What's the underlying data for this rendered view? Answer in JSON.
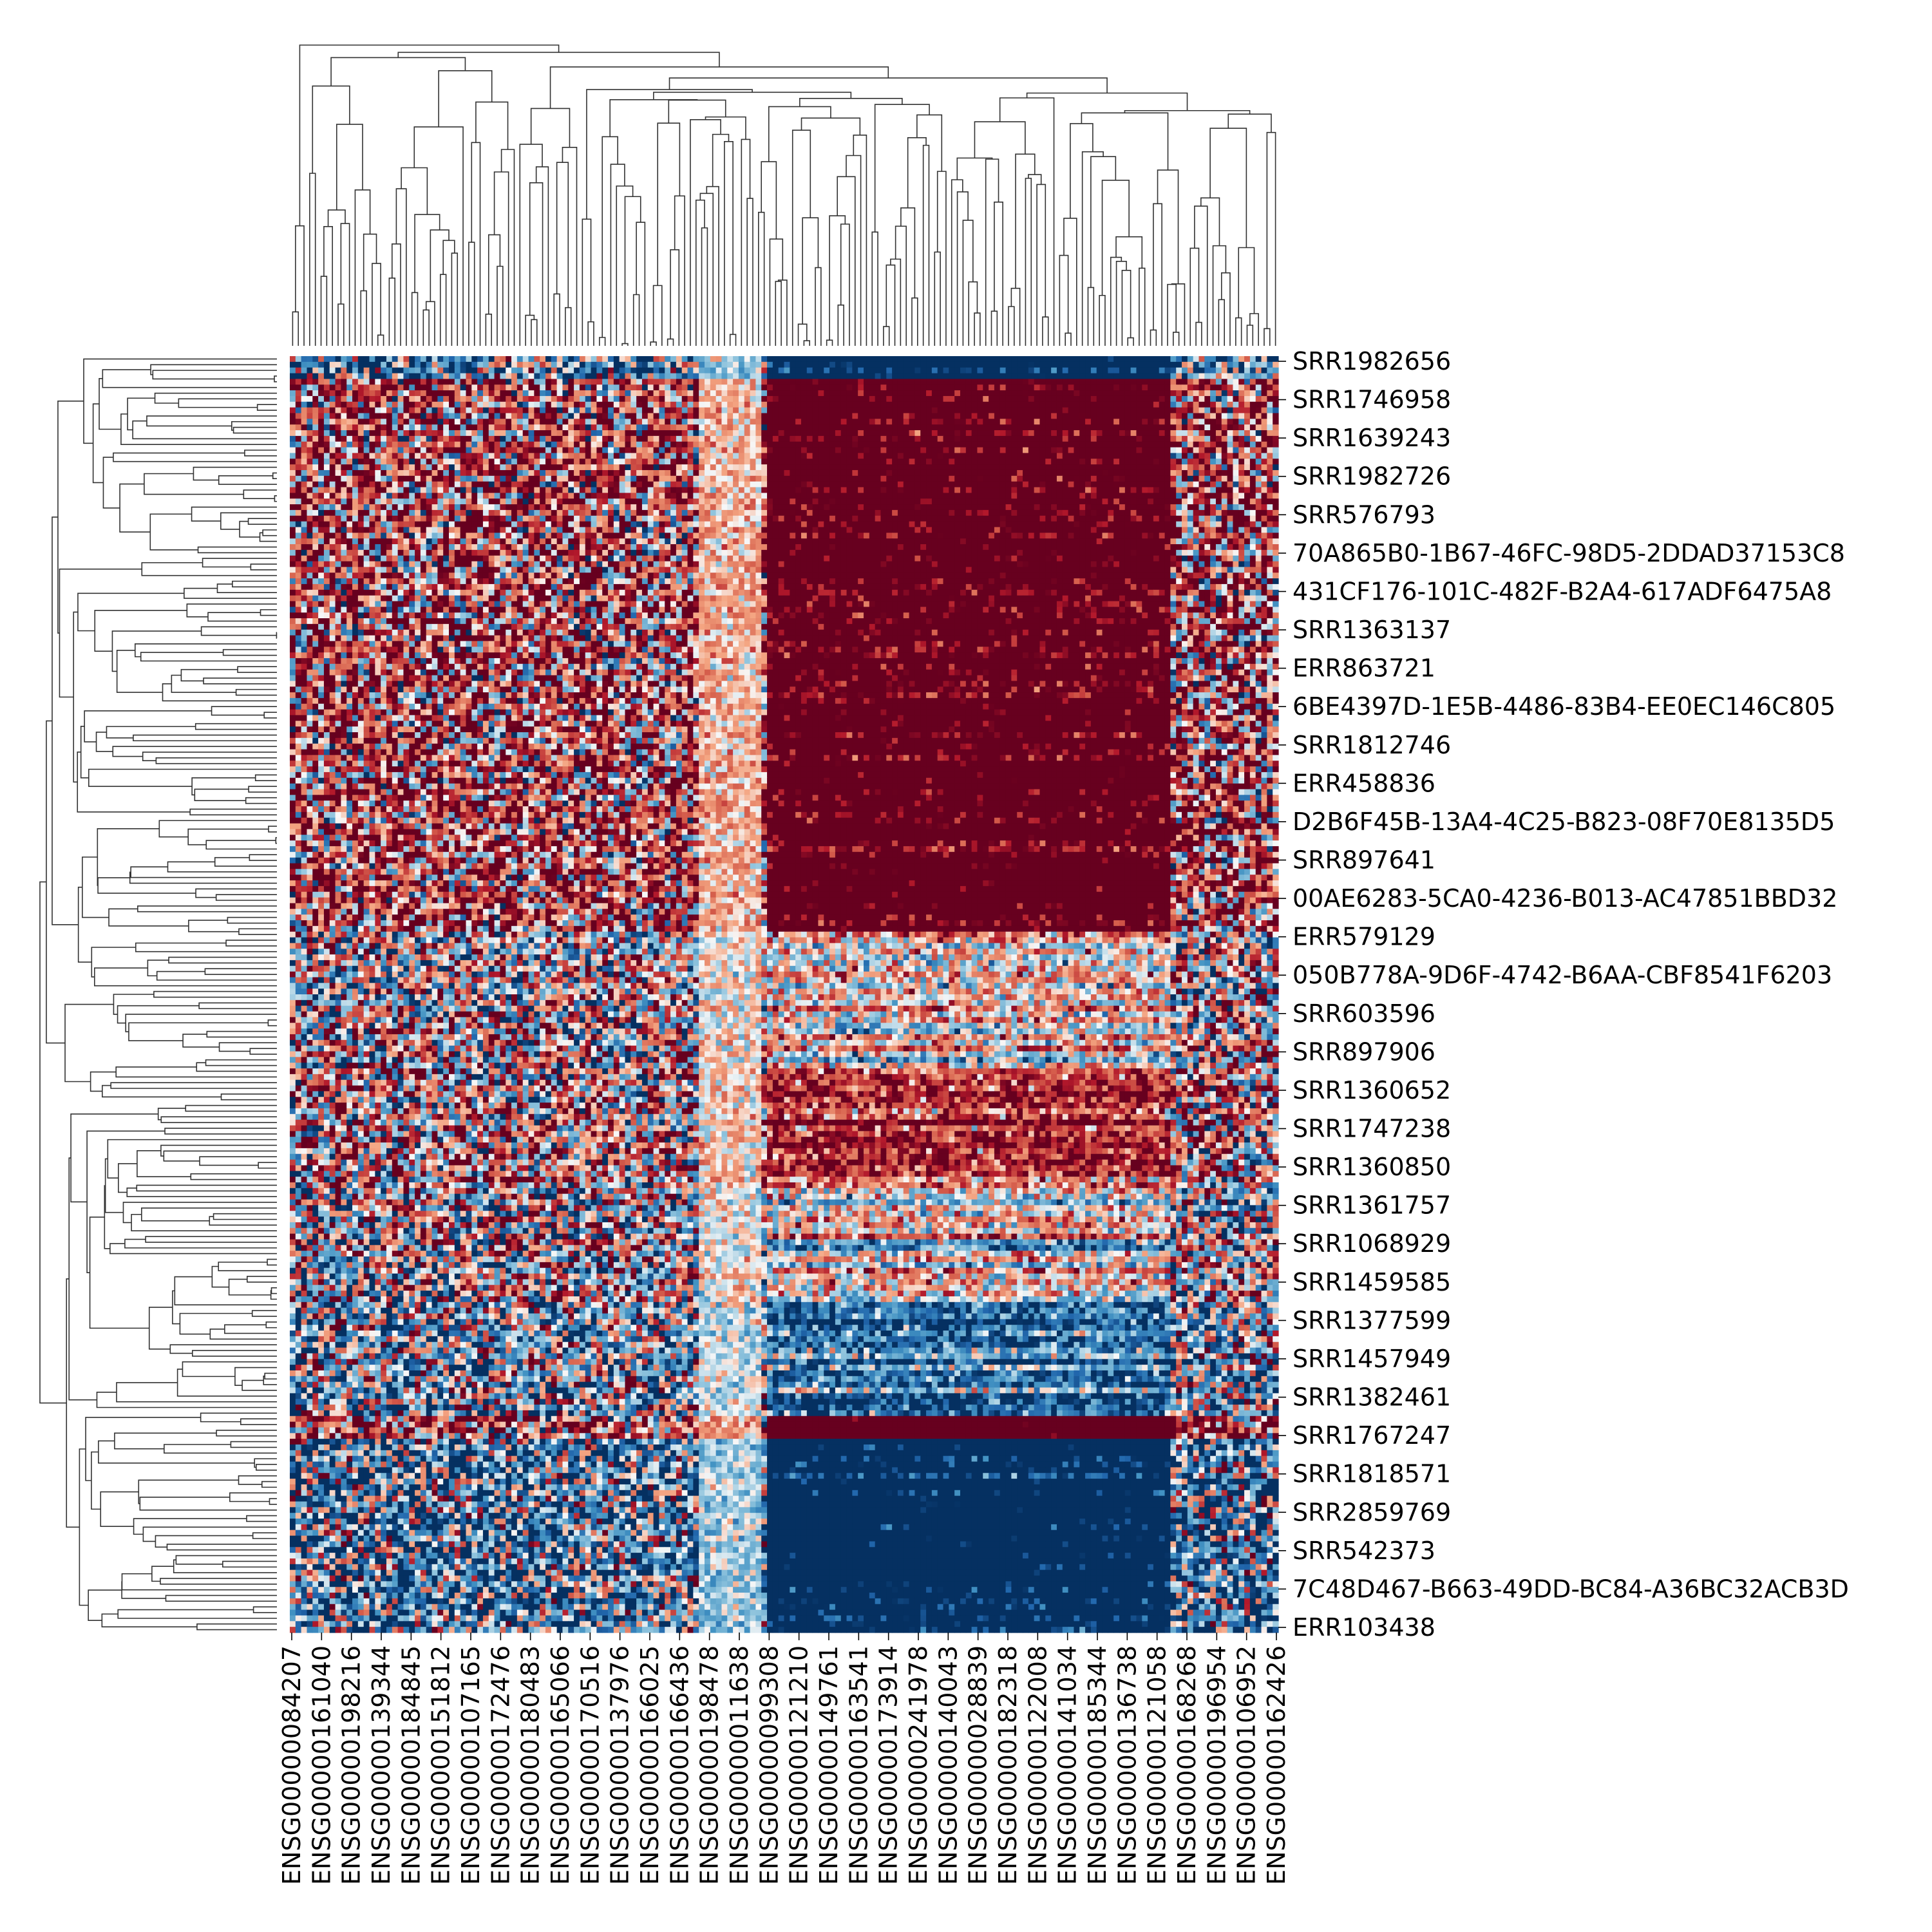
{
  "chart_data": {
    "type": "heatmap",
    "title": "",
    "xlabel": "",
    "ylabel": "",
    "colormap": "RdBu_r",
    "colors": {
      "low": "#053061",
      "mid_low": "#4393c3",
      "center": "#f7f7f7",
      "mid_high": "#d6604d",
      "high": "#67001f"
    },
    "grid": false,
    "legend": "none",
    "n_columns": 174,
    "n_rows": 224,
    "column_labels": [
      "ENSG00000084207",
      "ENSG00000161040",
      "ENSG00000198216",
      "ENSG00000139344",
      "ENSG00000184845",
      "ENSG00000151812",
      "ENSG00000107165",
      "ENSG00000172476",
      "ENSG00000180483",
      "ENSG00000165066",
      "ENSG00000170516",
      "ENSG00000137976",
      "ENSG00000166025",
      "ENSG00000166436",
      "ENSG00000198478",
      "ENSG00000011638",
      "ENSG00000099308",
      "ENSG00000121210",
      "ENSG00000149761",
      "ENSG00000163541",
      "ENSG00000173914",
      "ENSG00000241978",
      "ENSG00000140043",
      "ENSG00000028839",
      "ENSG00000182318",
      "ENSG00000122008",
      "ENSG00000141034",
      "ENSG00000185344",
      "ENSG00000136738",
      "ENSG00000121058",
      "ENSG00000168268",
      "ENSG00000196954",
      "ENSG00000106952",
      "ENSG00000162426"
    ],
    "row_labels": [
      "SRR1982656",
      "SRR1746958",
      "SRR1639243",
      "SRR1982726",
      "SRR576793",
      "70A865B0-1B67-46FC-98D5-2DDAD37153C8",
      "431CF176-101C-482F-B2A4-617ADF6475A8",
      "SRR1363137",
      "ERR863721",
      "6BE4397D-1E5B-4486-83B4-EE0EC146C805",
      "SRR1812746",
      "ERR458836",
      "D2B6F45B-13A4-4C25-B823-08F70E8135D5",
      "SRR897641",
      "00AE6283-5CA0-4236-B013-AC47851BBD32",
      "ERR579129",
      "050B778A-9D6F-4742-B6AA-CBF8541F6203",
      "SRR603596",
      "SRR897906",
      "SRR1360652",
      "SRR1747238",
      "SRR1360850",
      "SRR1361757",
      "SRR1068929",
      "SRR1459585",
      "SRR1377599",
      "SRR1457949",
      "SRR1382461",
      "SRR1767247",
      "SRR1818571",
      "SRR2859769",
      "SRR542373",
      "7C48D467-B663-49DD-BC84-A36BC32ACB3D",
      "ERR103438"
    ],
    "column_blocks": [
      {
        "from_col": 0,
        "to_col": 61,
        "pattern": "mixed"
      },
      {
        "from_col": 62,
        "to_col": 83,
        "pattern": "mixed-with-light-band"
      },
      {
        "from_col": 84,
        "to_col": 154,
        "pattern": "strongly-structured"
      },
      {
        "from_col": 155,
        "to_col": 173,
        "pattern": "mixed"
      }
    ],
    "row_blocks": [
      {
        "from_row": 0,
        "to_row": 3,
        "tendency": "low",
        "note": "dark blue in right half"
      },
      {
        "from_row": 4,
        "to_row": 75,
        "tendency": "high",
        "note": "dark red in right half"
      },
      {
        "from_row": 76,
        "to_row": 100,
        "tendency": "high"
      },
      {
        "from_row": 101,
        "to_row": 124,
        "tendency": "mixed"
      },
      {
        "from_row": 125,
        "to_row": 145,
        "tendency": "moderate-high"
      },
      {
        "from_row": 146,
        "to_row": 165,
        "tendency": "near-zero"
      },
      {
        "from_row": 166,
        "to_row": 185,
        "tendency": "moderate-low"
      },
      {
        "from_row": 186,
        "to_row": 189,
        "tendency": "high",
        "note": "dark red band"
      },
      {
        "from_row": 190,
        "to_row": 223,
        "tendency": "low",
        "note": "dark blue in right half"
      }
    ]
  }
}
